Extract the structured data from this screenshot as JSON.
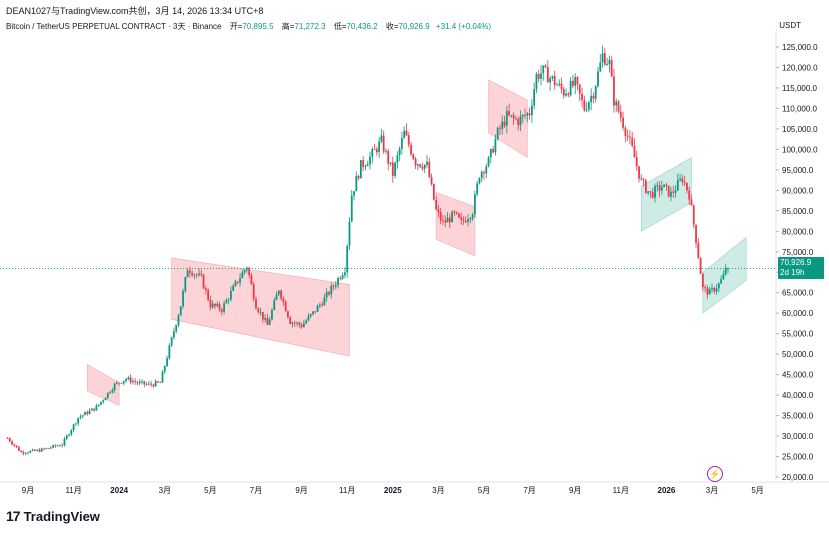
{
  "header": {
    "author_line": "DEAN1027与TradingView.com共创，3月 14, 2026 13:34 UTC+8",
    "symbol": "Bitcoin / TetherUS PERPETUAL CONTRACT · 3天 · Binance",
    "open_label": "开=",
    "open_value": "70,895.5",
    "high_label": "高=",
    "high_value": "71,272.3",
    "low_label": "低=",
    "low_value": "70,436.2",
    "close_label": "收=",
    "close_value": "70,926.9",
    "change": "+31.4 (+0.04%)",
    "currency": "USDT"
  },
  "price_tag": {
    "value": "70,926.9",
    "countdown": "2d 19h"
  },
  "logo": {
    "mark": "17",
    "text": "TradingView"
  },
  "colors": {
    "up": "#089981",
    "down": "#f23645",
    "pink_zone": "#f7b7bd",
    "green_zone": "#a5d6a7",
    "line": "#089981"
  },
  "chart_data": {
    "type": "candlestick",
    "y_axis": {
      "ticks": [
        "125,000.0",
        "120,000.0",
        "115,000.0",
        "110,000.0",
        "105,000.0",
        "100,000.0",
        "95,000.0",
        "90,000.0",
        "85,000.0",
        "80,000.0",
        "75,000.0",
        "70,000.0",
        "65,000.0",
        "60,000.0",
        "55,000.0",
        "50,000.0",
        "45,000.0",
        "40,000.0",
        "35,000.0",
        "30,000.0",
        "25,000.0",
        "20,000.0"
      ],
      "range": [
        18000,
        127000
      ]
    },
    "x_axis": {
      "ticks": [
        {
          "label": "9月",
          "month": 0,
          "bold": false
        },
        {
          "label": "11月",
          "month": 2,
          "bold": false
        },
        {
          "label": "2024",
          "month": 4,
          "bold": true
        },
        {
          "label": "3月",
          "month": 6,
          "bold": false
        },
        {
          "label": "5月",
          "month": 8,
          "bold": false
        },
        {
          "label": "7月",
          "month": 10,
          "bold": false
        },
        {
          "label": "9月",
          "month": 12,
          "bold": false
        },
        {
          "label": "11月",
          "month": 14,
          "bold": false
        },
        {
          "label": "2025",
          "month": 16,
          "bold": true
        },
        {
          "label": "3月",
          "month": 18,
          "bold": false
        },
        {
          "label": "5月",
          "month": 20,
          "bold": false
        },
        {
          "label": "7月",
          "month": 22,
          "bold": false
        },
        {
          "label": "9月",
          "month": 24,
          "bold": false
        },
        {
          "label": "11月",
          "month": 26,
          "bold": false
        },
        {
          "label": "2026",
          "month": 28,
          "bold": true
        },
        {
          "label": "3月",
          "month": 30,
          "bold": false
        },
        {
          "label": "5月",
          "month": 32,
          "bold": false
        }
      ]
    },
    "price_path": [
      [
        -0.9,
        29500
      ],
      [
        -0.3,
        26000
      ],
      [
        0.5,
        26500
      ],
      [
        1.5,
        28000
      ],
      [
        2.2,
        34500
      ],
      [
        3.0,
        37000
      ],
      [
        3.8,
        42500
      ],
      [
        4.3,
        44000
      ],
      [
        4.8,
        43000
      ],
      [
        5.3,
        42500
      ],
      [
        5.8,
        43000
      ],
      [
        6.2,
        51500
      ],
      [
        6.7,
        62000
      ],
      [
        7.0,
        71000
      ],
      [
        7.6,
        68500
      ],
      [
        8.0,
        62000
      ],
      [
        8.5,
        61000
      ],
      [
        9.2,
        68000
      ],
      [
        9.6,
        71500
      ],
      [
        10.0,
        62000
      ],
      [
        10.5,
        57000
      ],
      [
        11.0,
        66000
      ],
      [
        11.5,
        58000
      ],
      [
        12.0,
        57000
      ],
      [
        12.5,
        60000
      ],
      [
        13.0,
        63500
      ],
      [
        13.5,
        67500
      ],
      [
        13.9,
        71000
      ],
      [
        14.2,
        89000
      ],
      [
        14.6,
        96000
      ],
      [
        15.0,
        98000
      ],
      [
        15.5,
        102000
      ],
      [
        16.0,
        94000
      ],
      [
        16.5,
        104000
      ],
      [
        17.0,
        97000
      ],
      [
        17.5,
        96000
      ],
      [
        17.9,
        85000
      ],
      [
        18.2,
        82000
      ],
      [
        18.7,
        84000
      ],
      [
        19.0,
        82000
      ],
      [
        19.5,
        85000
      ],
      [
        19.8,
        94000
      ],
      [
        20.2,
        97000
      ],
      [
        20.6,
        104000
      ],
      [
        21.0,
        108000
      ],
      [
        21.5,
        107000
      ],
      [
        22.0,
        109000
      ],
      [
        22.3,
        118000
      ],
      [
        22.6,
        119000
      ],
      [
        23.0,
        117000
      ],
      [
        23.5,
        114000
      ],
      [
        24.0,
        116000
      ],
      [
        24.4,
        110000
      ],
      [
        24.8,
        114000
      ],
      [
        25.2,
        123000
      ],
      [
        25.5,
        121000
      ],
      [
        25.7,
        112000
      ],
      [
        26.0,
        108000
      ],
      [
        26.5,
        100000
      ],
      [
        26.9,
        92000
      ],
      [
        27.3,
        89000
      ],
      [
        27.8,
        91000
      ],
      [
        28.2,
        89000
      ],
      [
        28.7,
        93000
      ],
      [
        29.0,
        89000
      ],
      [
        29.3,
        78000
      ],
      [
        29.6,
        66000
      ],
      [
        29.9,
        65000
      ],
      [
        30.3,
        67000
      ],
      [
        30.7,
        70900
      ]
    ],
    "zones": [
      {
        "color": "pink",
        "x1": 2.6,
        "x2": 4.0,
        "top_left": 47500,
        "top_right": 43000,
        "bottom_left": 41000,
        "bottom_right": 37500
      },
      {
        "color": "pink",
        "x1": 6.3,
        "x2": 14.1,
        "top_left": 73500,
        "top_right": 67000,
        "bottom_left": 58500,
        "bottom_right": 49500
      },
      {
        "color": "pink",
        "x1": 17.9,
        "x2": 19.6,
        "top_left": 89500,
        "top_right": 86000,
        "bottom_left": 78000,
        "bottom_right": 74000
      },
      {
        "color": "pink",
        "x1": 20.2,
        "x2": 21.9,
        "top_left": 117000,
        "top_right": 112000,
        "bottom_left": 104000,
        "bottom_right": 98000
      },
      {
        "color": "green",
        "x1": 26.9,
        "x2": 29.1,
        "top_left": 91000,
        "top_right": 98000,
        "bottom_left": 80000,
        "bottom_right": 87000
      },
      {
        "color": "green",
        "x1": 29.6,
        "x2": 31.5,
        "top_left": 70000,
        "top_right": 78500,
        "bottom_left": 60000,
        "bottom_right": 68000
      }
    ],
    "last_price": 70926.9
  }
}
